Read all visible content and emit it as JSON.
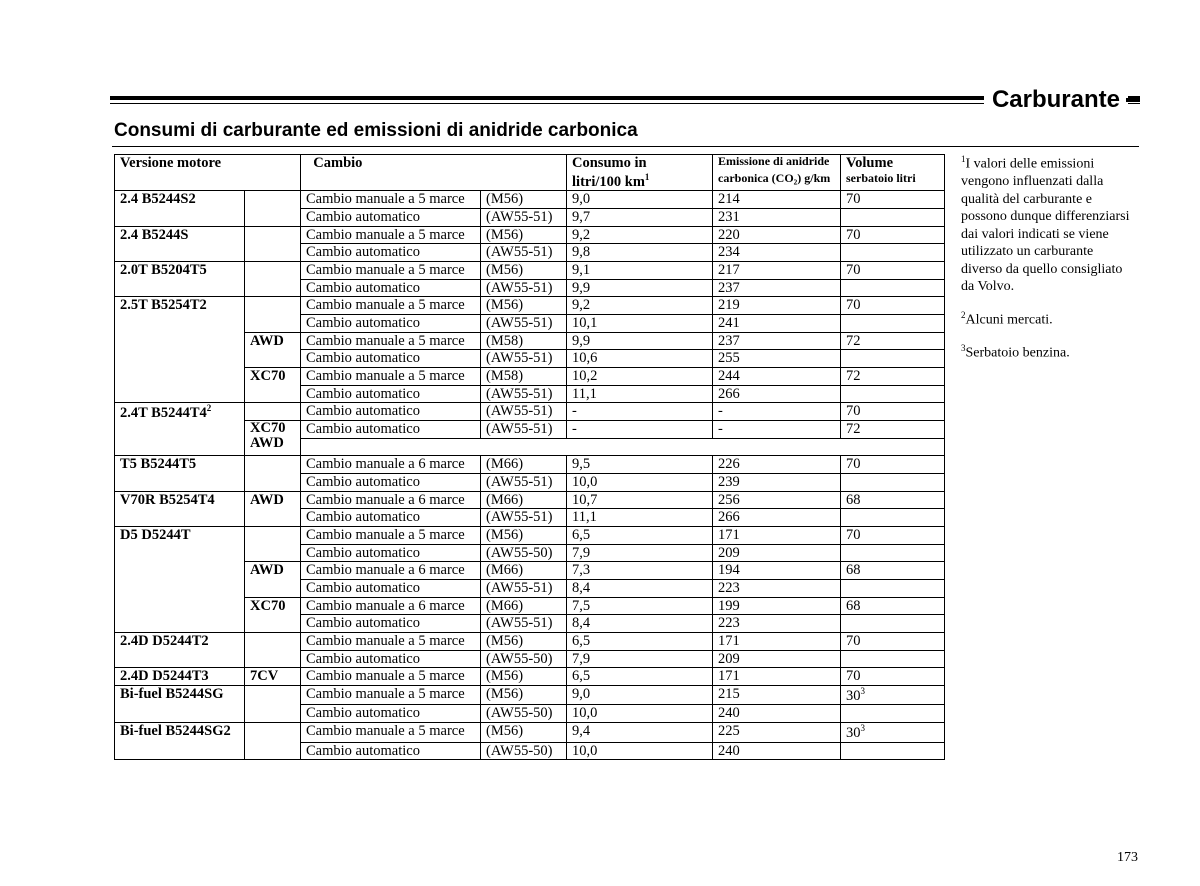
{
  "page_title": "Carburante",
  "subtitle": "Consumi di carburante ed emissioni di anidride carbonica",
  "page_number": "173",
  "headers": {
    "engine": "Versione motore",
    "gearbox": "Cambio",
    "consumo_l1": "Consumo  in",
    "consumo_l2": "litri/100 km",
    "consumo_sup": "1",
    "co2_l1": "Emissione di anidride",
    "co2_l2": "carbonica (CO₂) g/km",
    "tank_l1": "Volume",
    "tank_l2": "serbatoio litri"
  },
  "gearbox_labels": {
    "man5": "Cambio manuale a 5 marce",
    "man6": "Cambio manuale a 6 marce",
    "auto": "Cambio automatico"
  },
  "codes": {
    "M56": "(M56)",
    "M58": "(M58)",
    "M66": "(M66)",
    "AW55_51": "(AW55-51)",
    "AW55_50": "(AW55-50)"
  },
  "engines": [
    {
      "name": "2.4   B5244S2",
      "rows": [
        {
          "gb": "man5",
          "code": "M56",
          "cons": "9,0",
          "co2": "214",
          "tank": "70"
        },
        {
          "gb": "auto",
          "code": "AW55_51",
          "cons": "9,7",
          "co2": "231",
          "tank": ""
        }
      ]
    },
    {
      "name": "2.4   B5244S",
      "rows": [
        {
          "gb": "man5",
          "code": "M56",
          "cons": "9,2",
          "co2": "220",
          "tank": "70"
        },
        {
          "gb": "auto",
          "code": "AW55_51",
          "cons": "9,8",
          "co2": "234",
          "tank": ""
        }
      ]
    },
    {
      "name": "2.0T B5204T5",
      "rows": [
        {
          "gb": "man5",
          "code": "M56",
          "cons": "9,1",
          "co2": "217",
          "tank": "70"
        },
        {
          "gb": "auto",
          "code": "AW55_51",
          "cons": "9,9",
          "co2": "237",
          "tank": ""
        }
      ]
    },
    {
      "name": "2.5T B5254T2",
      "variants": [
        {
          "label": "",
          "rows": [
            {
              "gb": "man5",
              "code": "M56",
              "cons": "9,2",
              "co2": "219",
              "tank": "70"
            },
            {
              "gb": "auto",
              "code": "AW55_51",
              "cons": "10,1",
              "co2": "241",
              "tank": ""
            }
          ]
        },
        {
          "label": "AWD",
          "rows": [
            {
              "gb": "man5",
              "code": "M58",
              "cons": "9,9",
              "co2": "237",
              "tank": "72"
            },
            {
              "gb": "auto",
              "code": "AW55_51",
              "cons": "10,6",
              "co2": "255",
              "tank": ""
            }
          ]
        },
        {
          "label": "XC70",
          "rows": [
            {
              "gb": "man5",
              "code": "M58",
              "cons": "10,2",
              "co2": "244",
              "tank": "72"
            },
            {
              "gb": "auto",
              "code": "AW55_51",
              "cons": "11,1",
              "co2": "266",
              "tank": ""
            }
          ]
        }
      ]
    },
    {
      "name": "2.4T B5244T4",
      "name_sup": "2",
      "variants": [
        {
          "label": "",
          "rows": [
            {
              "gb": "auto",
              "code": "AW55_51",
              "cons": "-",
              "co2": "-",
              "tank": "70"
            }
          ]
        },
        {
          "label": "XC70 AWD",
          "tall": true,
          "rows": [
            {
              "gb": "auto",
              "code": "AW55_51",
              "cons": "-",
              "co2": "-",
              "tank": "72"
            }
          ]
        }
      ]
    },
    {
      "name": "T5    B5244T5",
      "rows": [
        {
          "gb": "man6",
          "code": "M66",
          "cons": "9,5",
          "co2": "226",
          "tank": "70"
        },
        {
          "gb": "auto",
          "code": "AW55_51",
          "cons": "10,0",
          "co2": "239",
          "tank": ""
        }
      ]
    },
    {
      "name": "V70R B5254T4",
      "variants": [
        {
          "label": "AWD",
          "rows": [
            {
              "gb": "man6",
              "code": "M66",
              "cons": "10,7",
              "co2": "256",
              "tank": "68"
            },
            {
              "gb": "auto",
              "code": "AW55_51",
              "cons": "11,1",
              "co2": "266",
              "tank": ""
            }
          ]
        }
      ]
    },
    {
      "name": "D5    D5244T",
      "variants": [
        {
          "label": "",
          "rows": [
            {
              "gb": "man5",
              "code": "M56",
              "cons": "6,5",
              "co2": "171",
              "tank": "70"
            },
            {
              "gb": "auto",
              "code": "AW55_50",
              "cons": "7,9",
              "co2": "209",
              "tank": ""
            }
          ]
        },
        {
          "label": "AWD",
          "rows": [
            {
              "gb": "man6",
              "code": "M66",
              "cons": "7,3",
              "co2": "194",
              "tank": "68"
            },
            {
              "gb": "auto",
              "code": "AW55_51",
              "cons": "8,4",
              "co2": "223",
              "tank": ""
            }
          ]
        },
        {
          "label": "XC70",
          "rows": [
            {
              "gb": "man6",
              "code": "M66",
              "cons": "7,5",
              "co2": "199",
              "tank": "68"
            },
            {
              "gb": "auto",
              "code": "AW55_51",
              "cons": "8,4",
              "co2": "223",
              "tank": ""
            }
          ]
        }
      ]
    },
    {
      "name": "2.4D D5244T2",
      "rows": [
        {
          "gb": "man5",
          "code": "M56",
          "cons": "6,5",
          "co2": "171",
          "tank": "70"
        },
        {
          "gb": "auto",
          "code": "AW55_50",
          "cons": "7,9",
          "co2": "209",
          "tank": ""
        }
      ]
    },
    {
      "name": "2.4D D5244T3",
      "variants": [
        {
          "label": "7CV",
          "rows": [
            {
              "gb": "man5",
              "code": "M56",
              "cons": "6,5",
              "co2": "171",
              "tank": "70"
            }
          ]
        }
      ]
    },
    {
      "name": "Bi-fuel B5244SG",
      "rows": [
        {
          "gb": "man5",
          "code": "M56",
          "cons": "9,0",
          "co2": "215",
          "tank": "30",
          "tank_sup": "3"
        },
        {
          "gb": "auto",
          "code": "AW55_50",
          "cons": "10,0",
          "co2": "240",
          "tank": ""
        }
      ]
    },
    {
      "name": "Bi-fuel B5244SG2",
      "rows": [
        {
          "gb": "man5",
          "code": "M56",
          "cons": "9,4",
          "co2": "225",
          "tank": "30",
          "tank_sup": "3"
        },
        {
          "gb": "auto",
          "code": "AW55_50",
          "cons": "10,0",
          "co2": "240",
          "tank": ""
        }
      ]
    }
  ],
  "footnotes": {
    "f1_sup": "1",
    "f1": "I valori delle emissioni vengono influenzati dalla qualità del carburante e possono dunque differenziarsi dai valori indicati se viene utilizzato un carburante diverso da quello consigliato da Volvo.",
    "f2_sup": "2",
    "f2": "Alcuni mercati.",
    "f3_sup": "3",
    "f3": "Serbatoio benzina."
  }
}
